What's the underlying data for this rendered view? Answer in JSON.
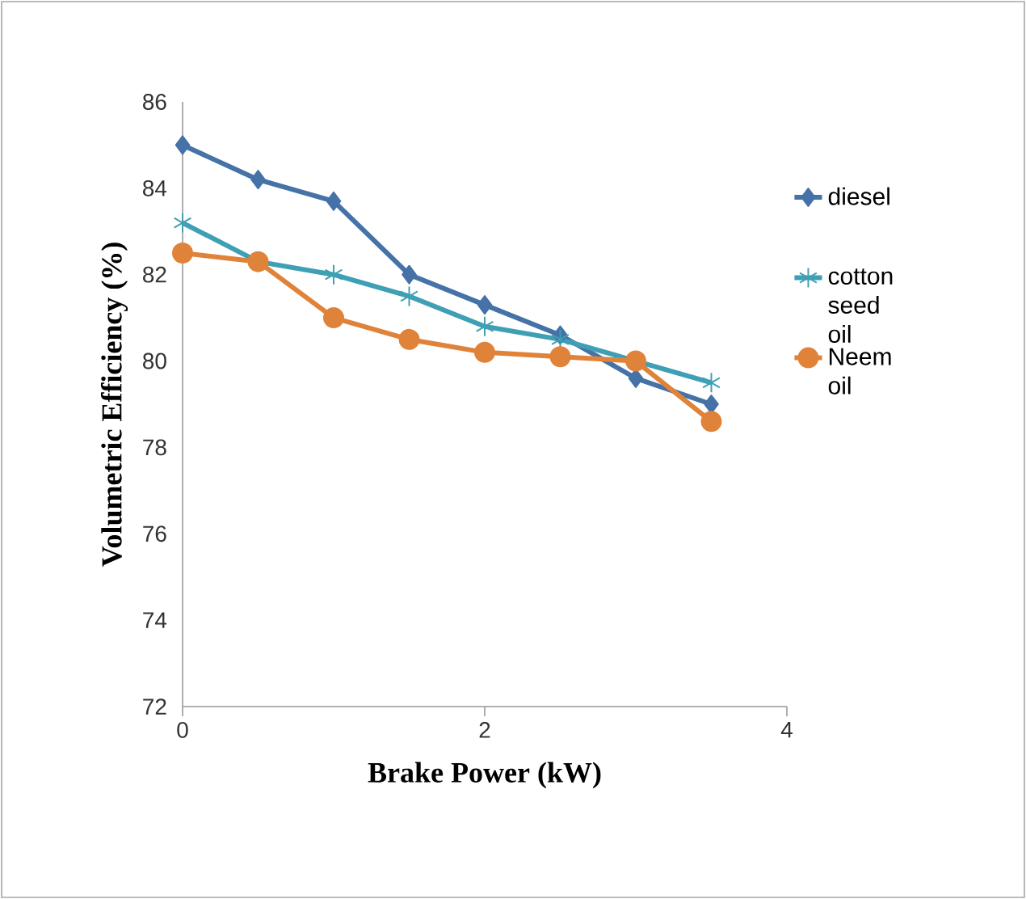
{
  "chart_data": {
    "type": "line",
    "xlabel": "Brake Power (kW)",
    "ylabel": "Volumetric Efficiency (%)",
    "x": [
      0,
      0.5,
      1,
      1.5,
      2,
      2.5,
      3,
      3.5
    ],
    "series": [
      {
        "name": "diesel",
        "color": "#4572a7",
        "marker": "diamond",
        "values": [
          85,
          84.2,
          83.7,
          82,
          81.3,
          80.6,
          79.6,
          79.0
        ]
      },
      {
        "name": "cotton seed oil",
        "color": "#3fa0b5",
        "marker": "cross",
        "values": [
          83.2,
          82.3,
          82.0,
          81.5,
          80.8,
          80.5,
          80.0,
          79.5
        ]
      },
      {
        "name": "Neem oil",
        "color": "#e0833a",
        "marker": "circle",
        "values": [
          82.5,
          82.3,
          81.0,
          80.5,
          80.2,
          80.1,
          80.0,
          78.6
        ]
      }
    ],
    "xlim": [
      0,
      4
    ],
    "xticks": [
      0,
      2,
      4
    ],
    "ylim": [
      72,
      86
    ],
    "yticks": [
      72,
      74,
      76,
      78,
      80,
      82,
      84,
      86
    ],
    "grid": false,
    "legend": "right"
  }
}
